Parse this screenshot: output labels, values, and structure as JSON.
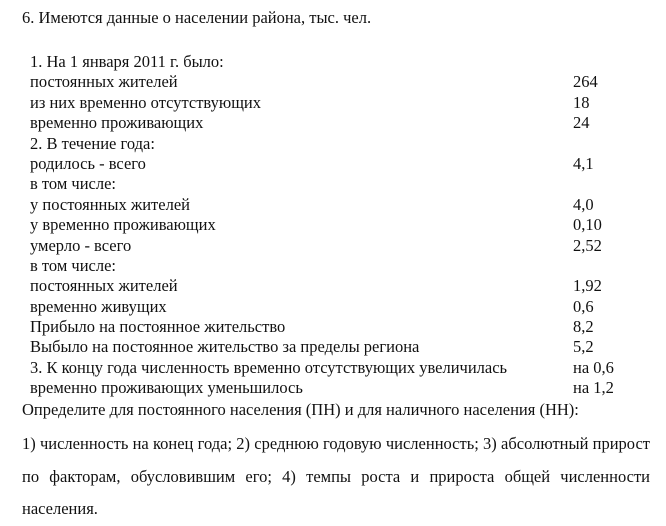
{
  "title": "6. Имеются данные о населении района, тыс. чел.",
  "rows": [
    {
      "label": "1. На 1 января 2011 г. было:",
      "value": ""
    },
    {
      "label": "постоянных жителей",
      "value": "264"
    },
    {
      "label": "из них временно отсутствующих",
      "value": "18"
    },
    {
      "label": "временно проживающих",
      "value": "24"
    },
    {
      "label": "2. В течение года:",
      "value": ""
    },
    {
      "label": "родилось - всего",
      "value": "4,1"
    },
    {
      "label": "в том числе:",
      "value": ""
    },
    {
      "label": "у постоянных жителей",
      "value": "4,0"
    },
    {
      "label": "у временно проживающих",
      "value": "0,10"
    },
    {
      "label": "умерло - всего",
      "value": "2,52"
    },
    {
      "label": "в том числе:",
      "value": ""
    },
    {
      "label": "постоянных жителей",
      "value": "1,92"
    },
    {
      "label": "временно живущих",
      "value": "0,6"
    },
    {
      "label": "Прибыло на постоянное жительство",
      "value": "8,2"
    },
    {
      "label": "Выбыло на постоянное жительство за пределы региона",
      "value": "5,2"
    },
    {
      "label": "3. К концу года численность временно отсутствующих увеличилась",
      "value": "на 0,6"
    },
    {
      "label": "временно проживающих уменьшилось",
      "value": "на 1,2"
    }
  ],
  "task": "Определите для постоянного населения (ПН) и для наличного населения (НН):",
  "questions": "1) численность на конец года; 2) среднюю годовую численность; 3) абсолютный прирост по факторам, обусловившим его; 4) темпы роста и прироста общей численности населения."
}
